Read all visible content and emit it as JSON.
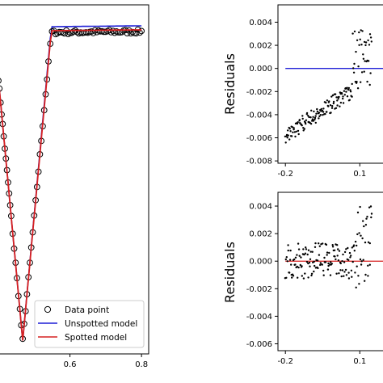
{
  "chart_data": [
    {
      "panel": "light-curve",
      "type": "line",
      "xlabel": "",
      "ylabel": "",
      "xlim": [
        0.4,
        0.82
      ],
      "x_ticks": [
        "0.6",
        "0.8"
      ],
      "legend": {
        "placement": "bottom-right",
        "entries": [
          "Data point",
          "Unspotted model",
          "Spotted model"
        ]
      },
      "colors": {
        "data": "#000000",
        "unspotted": "#1f1fd6",
        "spotted": "#d62020"
      },
      "series": [
        {
          "name": "Data point",
          "x": [
            0.4,
            0.403,
            0.406,
            0.409,
            0.412,
            0.415,
            0.418,
            0.421,
            0.424,
            0.427,
            0.43,
            0.433,
            0.436,
            0.44,
            0.444,
            0.448,
            0.452,
            0.456,
            0.46,
            0.464,
            0.468,
            0.472,
            0.476,
            0.48,
            0.484,
            0.488,
            0.492,
            0.496,
            0.5,
            0.504,
            0.508,
            0.512,
            0.516,
            0.52,
            0.524,
            0.528,
            0.532,
            0.536,
            0.54,
            0.545,
            0.55,
            0.555,
            0.56,
            0.565,
            0.57,
            0.575,
            0.58,
            0.585,
            0.59,
            0.595,
            0.6,
            0.605,
            0.61,
            0.615,
            0.62,
            0.625,
            0.63,
            0.635,
            0.64,
            0.645,
            0.65,
            0.655,
            0.66,
            0.665,
            0.67,
            0.675,
            0.68,
            0.685,
            0.69,
            0.695,
            0.7,
            0.705,
            0.71,
            0.715,
            0.72,
            0.725,
            0.73,
            0.735,
            0.74,
            0.745,
            0.75,
            0.755,
            0.76,
            0.765,
            0.77,
            0.775,
            0.78,
            0.785,
            0.79,
            0.795,
            0.8
          ]
        },
        {
          "name": "Unspotted model"
        },
        {
          "name": "Spotted model"
        }
      ]
    },
    {
      "panel": "residuals-unspotted",
      "type": "scatter",
      "ylabel": "Residuals",
      "xlim": [
        -0.23,
        0.2
      ],
      "ylim": [
        -0.0082,
        0.0055
      ],
      "x_ticks": [
        "-0.2",
        "0.1"
      ],
      "y_ticks": [
        "0.004",
        "0.002",
        "0.000",
        "-0.002",
        "-0.004",
        "-0.006",
        "-0.008"
      ],
      "reference_line": {
        "y": 0.0,
        "color": "#1f1fd6"
      }
    },
    {
      "panel": "residuals-spotted",
      "type": "scatter",
      "ylabel": "Residuals",
      "xlim": [
        -0.23,
        0.2
      ],
      "ylim": [
        -0.0065,
        0.005
      ],
      "x_ticks": [
        "-0.2",
        "0.1"
      ],
      "y_ticks": [
        "0.004",
        "0.002",
        "0.000",
        "-0.002",
        "-0.004",
        "-0.006"
      ],
      "reference_line": {
        "y": 0.0,
        "color": "#d62020"
      }
    }
  ]
}
